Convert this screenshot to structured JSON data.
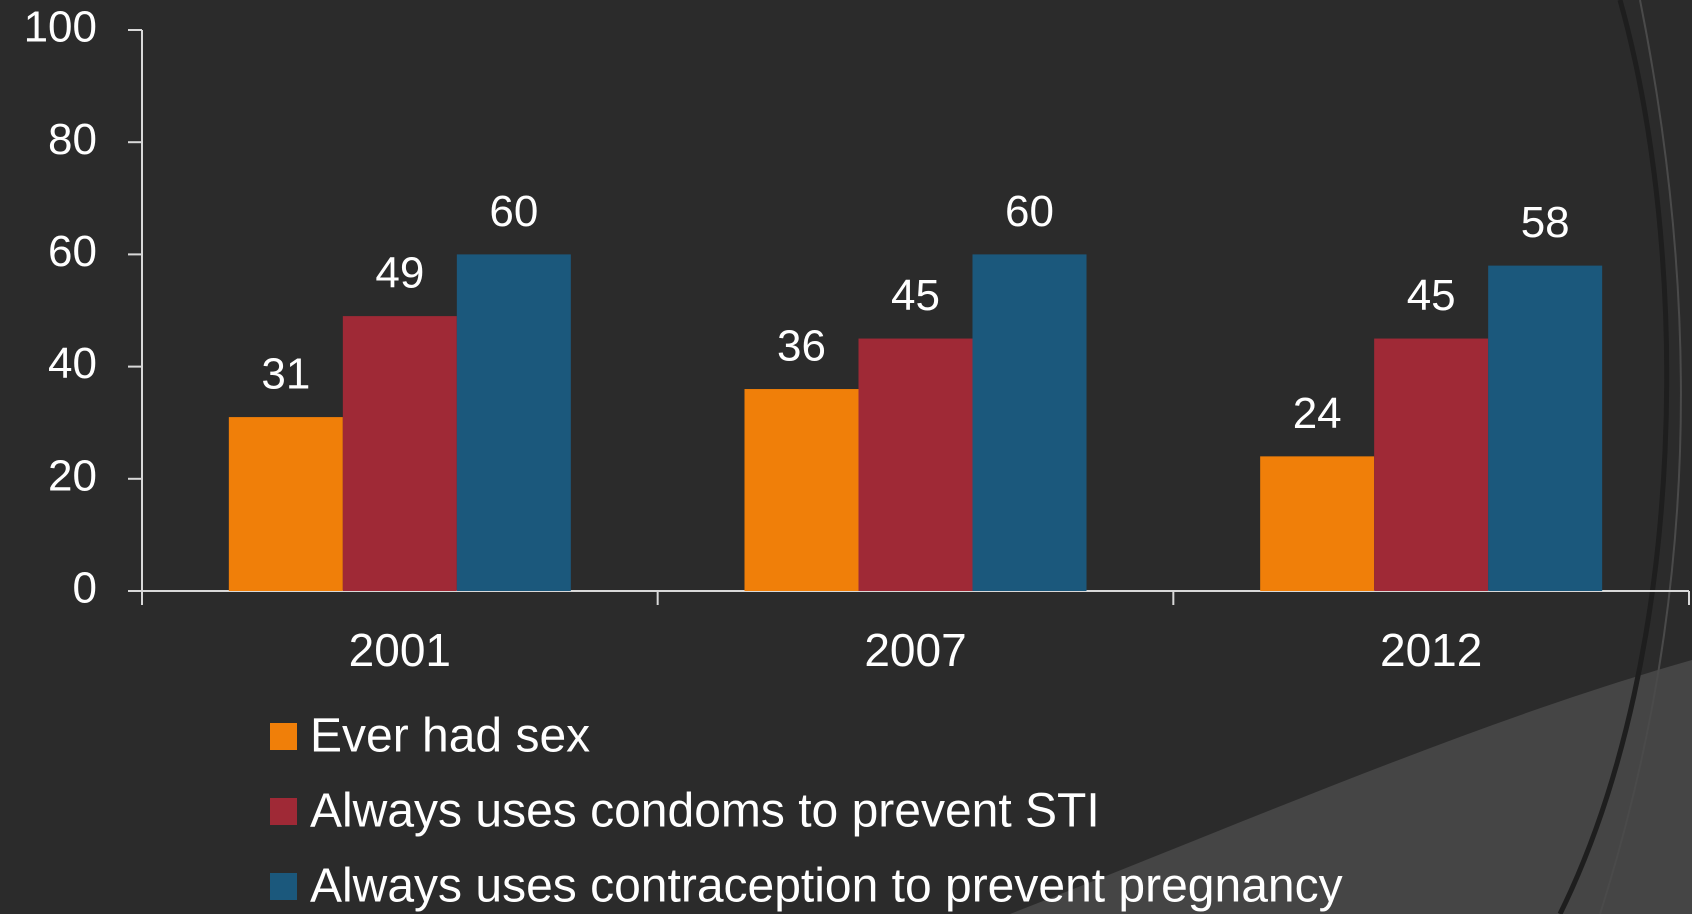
{
  "chart_data": {
    "type": "bar",
    "categories": [
      "2001",
      "2007",
      "2012"
    ],
    "series": [
      {
        "name": "Ever had sex",
        "color": "#f07f09",
        "values": [
          31,
          36,
          24
        ]
      },
      {
        "name": "Always uses condoms to prevent STI",
        "color": "#9f2936",
        "values": [
          49,
          45,
          45
        ]
      },
      {
        "name": "Always uses contraception to prevent pregnancy",
        "color": "#1b587c",
        "values": [
          60,
          60,
          58
        ]
      }
    ],
    "ylim": [
      0,
      100
    ],
    "yticks": [
      0,
      20,
      40,
      60,
      80,
      100
    ],
    "grid": false,
    "legend": "bottom"
  }
}
